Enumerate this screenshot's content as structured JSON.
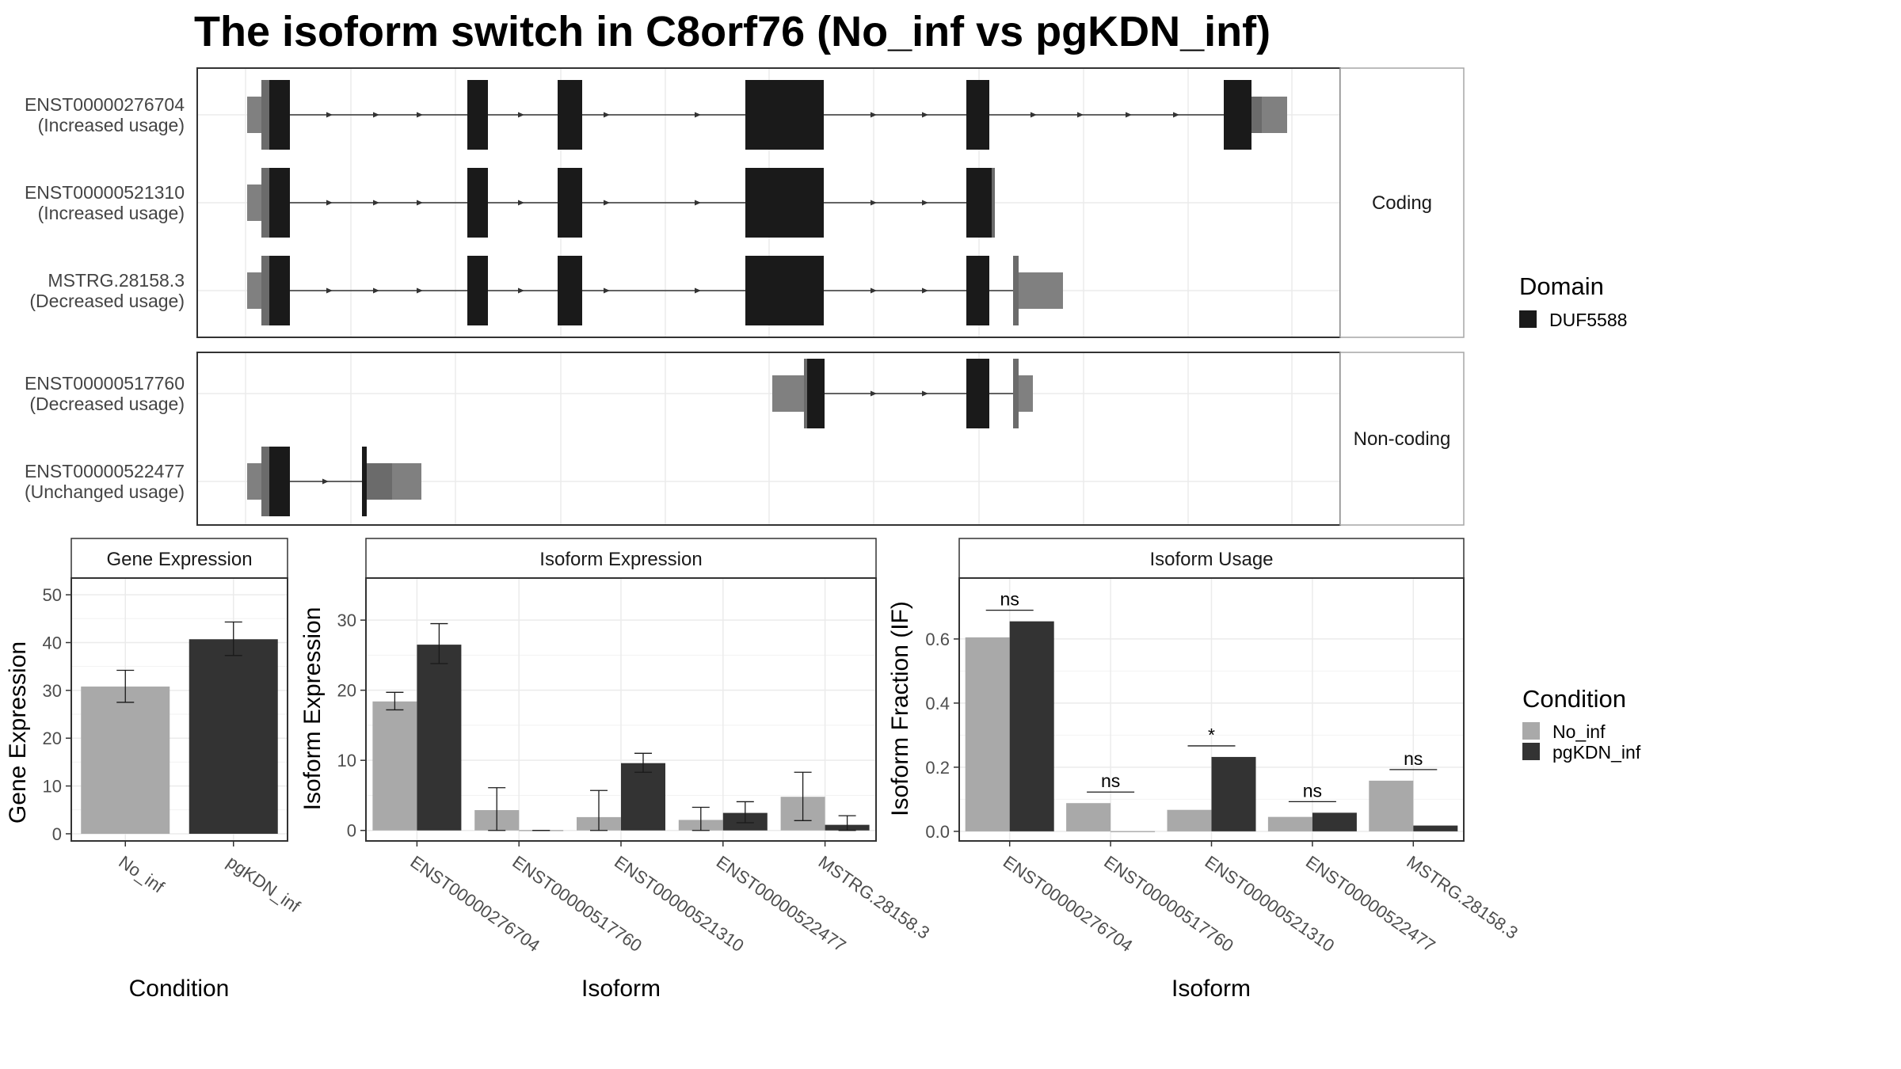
{
  "title": "The isoform switch in C8orf76 (No_inf vs pgKDN_inf)",
  "colors": {
    "domain": "#1a1a1a",
    "utr": "#808080",
    "utr_dark": "#6b6b6b",
    "no_inf": "#a9a9a9",
    "pgkdn_inf": "#333333",
    "grid": "#ebebeb",
    "panel_border": "#333333",
    "strip_border": "#a6a6a6"
  },
  "structure": {
    "facets": [
      "Coding",
      "Non-coding"
    ],
    "transcripts": [
      {
        "id": "ENST00000276704",
        "usage": "(Increased usage)",
        "facet": "Coding"
      },
      {
        "id": "ENST00000521310",
        "usage": "(Increased usage)",
        "facet": "Coding"
      },
      {
        "id": "MSTRG.28158.3",
        "usage": "(Decreased usage)",
        "facet": "Coding"
      },
      {
        "id": "ENST00000517760",
        "usage": "(Decreased usage)",
        "facet": "Non-coding"
      },
      {
        "id": "ENST00000522477",
        "usage": "(Unchanged usage)",
        "facet": "Non-coding"
      }
    ],
    "domain_legend": {
      "title": "Domain",
      "items": [
        "DUF5588"
      ]
    }
  },
  "chart_data": [
    {
      "type": "bar",
      "title": "Gene Expression",
      "xlabel": "Condition",
      "ylabel": "Gene Expression",
      "categories": [
        "No_inf",
        "pgKDN_inf"
      ],
      "values": [
        30.8,
        40.7
      ],
      "errors": [
        [
          27.5,
          34.2
        ],
        [
          37.3,
          44.3
        ]
      ],
      "yticks": [
        0,
        10,
        20,
        30,
        40,
        50
      ],
      "ylim": [
        -1.5,
        53.5
      ]
    },
    {
      "type": "bar",
      "title": "Isoform Expression",
      "xlabel": "Isoform",
      "ylabel": "Isoform Expression",
      "categories": [
        "ENST00000276704",
        "ENST00000517760",
        "ENST00000521310",
        "ENST00000522477",
        "MSTRG.28158.3"
      ],
      "series": [
        {
          "name": "No_inf",
          "values": [
            18.4,
            2.9,
            1.9,
            1.5,
            4.8
          ],
          "errors": [
            [
              17.2,
              19.7
            ],
            [
              0,
              6.1
            ],
            [
              0,
              5.7
            ],
            [
              0,
              3.3
            ],
            [
              1.4,
              8.3
            ]
          ]
        },
        {
          "name": "pgKDN_inf",
          "values": [
            26.5,
            0,
            9.6,
            2.5,
            0.8
          ],
          "errors": [
            [
              23.8,
              29.5
            ],
            [
              0,
              0
            ],
            [
              8.3,
              11.0
            ],
            [
              1.1,
              4.1
            ],
            [
              0,
              2.1
            ]
          ]
        }
      ],
      "yticks": [
        0,
        10,
        20,
        30
      ],
      "ylim": [
        -1.5,
        36
      ]
    },
    {
      "type": "bar",
      "title": "Isoform Usage",
      "xlabel": "Isoform",
      "ylabel": "Isoform Fraction (IF)",
      "categories": [
        "ENST00000276704",
        "ENST00000517760",
        "ENST00000521310",
        "ENST00000522477",
        "MSTRG.28158.3"
      ],
      "series": [
        {
          "name": "No_inf",
          "values": [
            0.605,
            0.088,
            0.067,
            0.045,
            0.158
          ]
        },
        {
          "name": "pgKDN_inf",
          "values": [
            0.655,
            0.0,
            0.232,
            0.058,
            0.018
          ]
        }
      ],
      "significance": [
        "ns",
        "ns",
        "*",
        "ns",
        "ns"
      ],
      "yticks": [
        "0.0",
        "0.2",
        "0.4",
        "0.6"
      ],
      "ylim": [
        -0.03,
        0.79
      ]
    }
  ],
  "condition_legend": {
    "title": "Condition",
    "items": [
      "No_inf",
      "pgKDN_inf"
    ]
  }
}
